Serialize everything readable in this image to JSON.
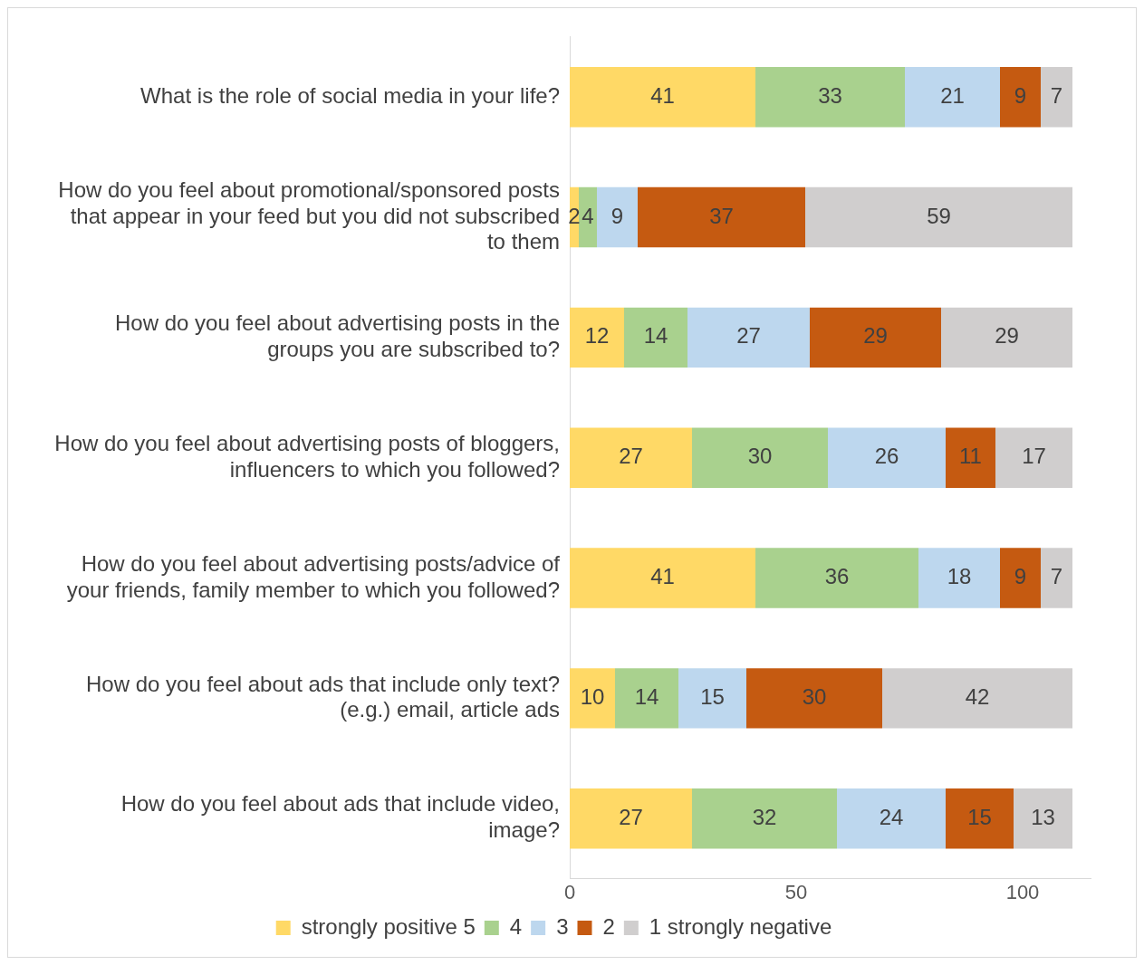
{
  "chart_data": {
    "type": "bar",
    "orientation": "horizontal",
    "stacked": true,
    "data_labels": true,
    "legend": "bottom",
    "grid": false,
    "categories": [
      "What is the role of social media in your life?",
      "How do you feel about promotional/sponsored posts that appear in your feed but you did not subscribed to them",
      "How do you feel about advertising posts in the groups you are subscribed to?",
      "How do you feel about advertising posts of bloggers, influencers to which you followed?",
      "How do you feel about advertising posts/advice of your friends, family member to which you followed?",
      "How do you feel about ads that include only text? (e.g.) email, article ads",
      "How do you feel about ads that include video, image?"
    ],
    "series": [
      {
        "name": "strongly positive 5",
        "color": "#ffd966",
        "values": [
          41,
          2,
          12,
          27,
          41,
          10,
          27
        ]
      },
      {
        "name": "4",
        "color": "#a9d18e",
        "values": [
          33,
          4,
          14,
          30,
          36,
          14,
          32
        ]
      },
      {
        "name": "3",
        "color": "#bdd7ee",
        "values": [
          21,
          9,
          27,
          26,
          18,
          15,
          24
        ]
      },
      {
        "name": "2",
        "color": "#c55a11",
        "values": [
          9,
          37,
          29,
          11,
          9,
          30,
          15
        ]
      },
      {
        "name": "1 strongly negative",
        "color": "#d0cece",
        "values": [
          7,
          59,
          29,
          17,
          7,
          42,
          13
        ]
      }
    ],
    "xlim": [
      0,
      115
    ],
    "xticks": [
      0,
      50,
      100
    ]
  }
}
